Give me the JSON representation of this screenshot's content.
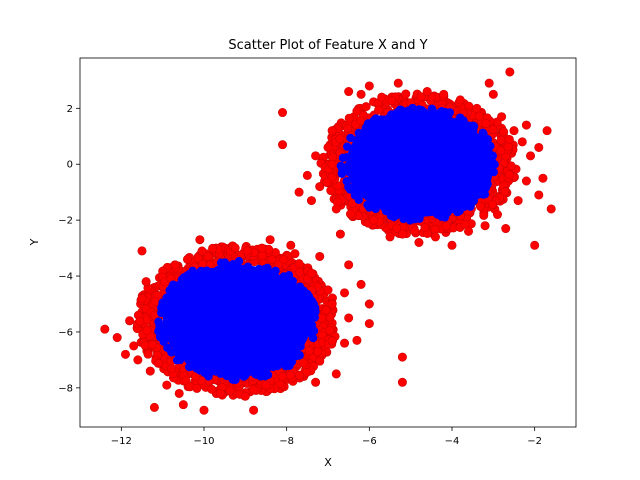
{
  "chart_data": {
    "type": "scatter",
    "title": "Scatter Plot of Feature X and Y",
    "xlabel": "X",
    "ylabel": "Y",
    "xlim": [
      -13,
      -1
    ],
    "ylim": [
      -9.4,
      3.8
    ],
    "x_ticks": [
      -12,
      -10,
      -8,
      -6,
      -4,
      -2
    ],
    "y_ticks": [
      -8,
      -6,
      -4,
      -2,
      0,
      2
    ],
    "x_tick_labels": [
      "−12",
      "−10",
      "−8",
      "−6",
      "−4",
      "−2"
    ],
    "y_tick_labels": [
      "−8",
      "−6",
      "−4",
      "−2",
      "0",
      "2"
    ],
    "grid": false,
    "colors": {
      "outlier": "#ff0000",
      "inlier": "#0000ff",
      "outlier_edge": "#cc0000"
    },
    "clusters": [
      {
        "center_x": -4.8,
        "center_y": 0.0,
        "radius_x": 2.2,
        "radius_y": 2.35
      },
      {
        "center_x": -9.2,
        "center_y": -5.6,
        "radius_x": 2.25,
        "radius_y": 2.5
      }
    ],
    "series": [
      {
        "color": "#ff0000",
        "points": [
          [
            -12.4,
            -5.9
          ],
          [
            -12.1,
            -6.2
          ],
          [
            -11.9,
            -6.8
          ],
          [
            -11.8,
            -5.6
          ],
          [
            -11.7,
            -6.5
          ],
          [
            -11.6,
            -7.0
          ],
          [
            -11.5,
            -4.8
          ],
          [
            -11.5,
            -3.1
          ],
          [
            -11.4,
            -4.2
          ],
          [
            -11.2,
            -5.4
          ],
          [
            -11.3,
            -7.4
          ],
          [
            -11.2,
            -8.7
          ],
          [
            -11.0,
            -5.0
          ],
          [
            -10.9,
            -7.9
          ],
          [
            -10.8,
            -4.1
          ],
          [
            -10.7,
            -3.6
          ],
          [
            -10.6,
            -8.2
          ],
          [
            -10.5,
            -8.6
          ],
          [
            -10.4,
            -3.4
          ],
          [
            -10.2,
            -7.6
          ],
          [
            -10.0,
            -8.8
          ],
          [
            -10.1,
            -2.7
          ],
          [
            -9.9,
            -3.3
          ],
          [
            -9.6,
            -8.2
          ],
          [
            -9.4,
            -7.5
          ],
          [
            -9.2,
            -3.4
          ],
          [
            -9.0,
            -8.3
          ],
          [
            -8.8,
            -8.8
          ],
          [
            -8.6,
            -3.0
          ],
          [
            -8.5,
            -7.9
          ],
          [
            -8.4,
            -2.7
          ],
          [
            -8.2,
            -3.6
          ],
          [
            -8.1,
            -7.6
          ],
          [
            -7.9,
            -2.9
          ],
          [
            -7.8,
            -3.2
          ],
          [
            -7.6,
            -7.1
          ],
          [
            -7.5,
            -4.1
          ],
          [
            -7.4,
            -3.9
          ],
          [
            -7.3,
            -7.8
          ],
          [
            -7.2,
            -3.3
          ],
          [
            -7.0,
            -4.5
          ],
          [
            -6.9,
            -5.0
          ],
          [
            -6.8,
            -7.5
          ],
          [
            -6.7,
            -2.5
          ],
          [
            -6.6,
            -6.4
          ],
          [
            -6.5,
            -5.5
          ],
          [
            -6.6,
            -4.6
          ],
          [
            -6.5,
            -3.6
          ],
          [
            -6.2,
            -4.3
          ],
          [
            -6.0,
            -5.0
          ],
          [
            -6.3,
            -6.3
          ],
          [
            -6.0,
            -5.7
          ],
          [
            -5.2,
            -6.9
          ],
          [
            -5.2,
            -7.8
          ],
          [
            -8.1,
            1.85
          ],
          [
            -8.1,
            0.7
          ],
          [
            -7.7,
            -1.0
          ],
          [
            -7.5,
            -0.4
          ],
          [
            -7.4,
            -1.3
          ],
          [
            -7.3,
            0.3
          ],
          [
            -7.2,
            -0.8
          ],
          [
            -7.0,
            0.6
          ],
          [
            -6.9,
            1.2
          ],
          [
            -6.8,
            -1.6
          ],
          [
            -6.9,
            0.0
          ],
          [
            -6.7,
            -0.3
          ],
          [
            -6.5,
            2.6
          ],
          [
            -6.4,
            -1.4
          ],
          [
            -6.3,
            1.9
          ],
          [
            -6.2,
            2.5
          ],
          [
            -6.0,
            2.8
          ],
          [
            -5.9,
            -2.0
          ],
          [
            -5.7,
            2.4
          ],
          [
            -5.5,
            -2.6
          ],
          [
            -5.3,
            2.9
          ],
          [
            -5.2,
            -2.5
          ],
          [
            -5.0,
            2.2
          ],
          [
            -4.8,
            -2.8
          ],
          [
            -4.6,
            2.6
          ],
          [
            -4.4,
            -2.6
          ],
          [
            -4.2,
            2.5
          ],
          [
            -4.0,
            -2.9
          ],
          [
            -3.8,
            2.3
          ],
          [
            -3.6,
            -2.4
          ],
          [
            -3.4,
            2.0
          ],
          [
            -3.2,
            -2.2
          ],
          [
            -3.0,
            2.5
          ],
          [
            -2.9,
            -1.8
          ],
          [
            -2.8,
            1.7
          ],
          [
            -2.7,
            -2.3
          ],
          [
            -2.6,
            3.3
          ],
          [
            -2.5,
            1.2
          ],
          [
            -2.4,
            -1.3
          ],
          [
            -2.3,
            0.8
          ],
          [
            -2.2,
            -0.6
          ],
          [
            -2.1,
            0.3
          ],
          [
            -2.0,
            -2.9
          ],
          [
            -1.9,
            0.6
          ],
          [
            -1.8,
            -0.5
          ],
          [
            -1.7,
            1.2
          ],
          [
            -1.6,
            -1.6
          ],
          [
            -1.9,
            -1.1
          ],
          [
            -2.2,
            1.4
          ],
          [
            -3.1,
            2.9
          ]
        ]
      },
      {
        "color": "#0000ff",
        "points": []
      }
    ]
  }
}
